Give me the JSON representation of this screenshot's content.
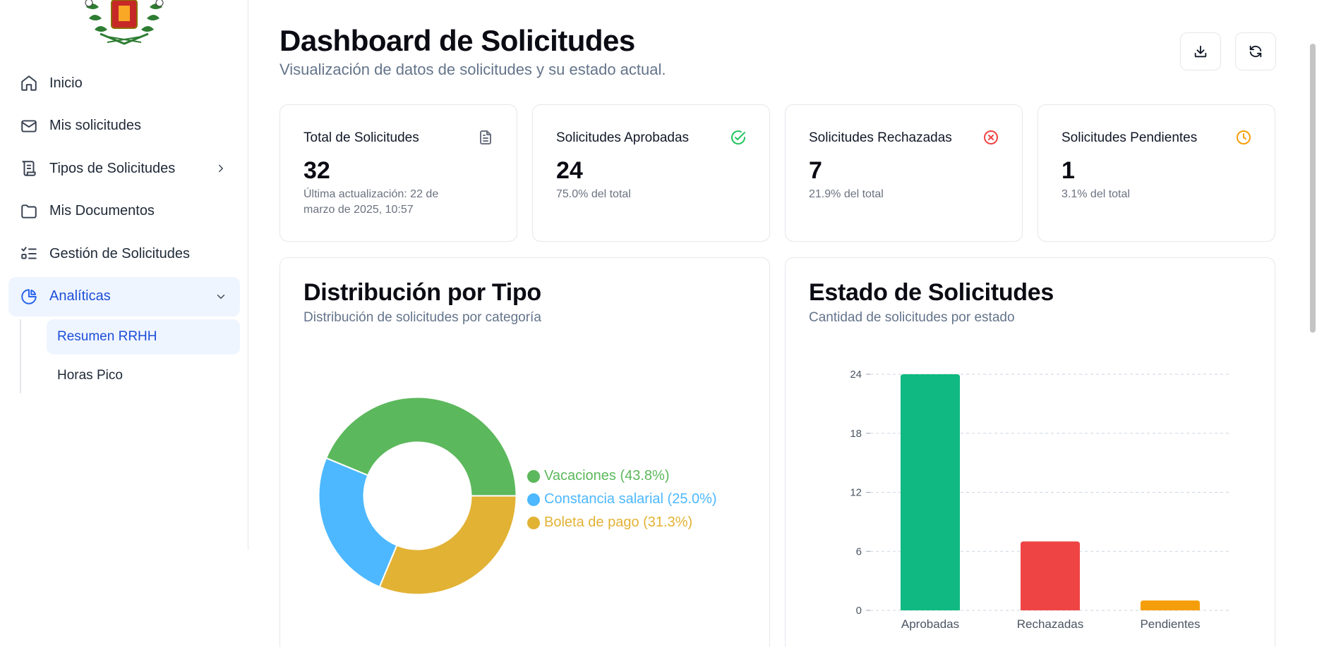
{
  "sidebar": {
    "items": [
      {
        "label": "Inicio",
        "icon": "home-icon"
      },
      {
        "label": "Mis solicitudes",
        "icon": "mail-icon"
      },
      {
        "label": "Tipos de Solicitudes",
        "icon": "scroll-icon"
      },
      {
        "label": "Mis Documentos",
        "icon": "folder-icon"
      },
      {
        "label": "Gestión de Solicitudes",
        "icon": "list-check-icon"
      },
      {
        "label": "Analíticas",
        "icon": "pie-chart-icon"
      }
    ],
    "subitems": [
      {
        "label": "Resumen RRHH"
      },
      {
        "label": "Horas Pico"
      }
    ]
  },
  "header": {
    "title": "Dashboard de Solicitudes",
    "subtitle": "Visualización de datos de solicitudes y su estado actual."
  },
  "stats": [
    {
      "title": "Total de Solicitudes",
      "value": "32",
      "note": "Última actualización: 22 de marzo de 2025, 10:57",
      "icon": "file-text-icon",
      "color": "#6b7280"
    },
    {
      "title": "Solicitudes Aprobadas",
      "value": "24",
      "note": "75.0% del total",
      "icon": "check-circle-icon",
      "color": "#22c55e"
    },
    {
      "title": "Solicitudes Rechazadas",
      "value": "7",
      "note": "21.9% del total",
      "icon": "x-circle-icon",
      "color": "#ef4444"
    },
    {
      "title": "Solicitudes Pendientes",
      "value": "1",
      "note": "3.1% del total",
      "icon": "clock-icon",
      "color": "#f59e0b"
    }
  ],
  "distribution": {
    "title": "Distribución por Tipo",
    "subtitle": "Distribución de solicitudes por categoría"
  },
  "status": {
    "title": "Estado de Solicitudes",
    "subtitle": "Cantidad de solicitudes por estado"
  },
  "chart_data": [
    {
      "type": "pie",
      "title": "Distribución por Tipo",
      "labels": [
        "Vacaciones (43.8%)",
        "Constancia salarial (25.0%)",
        "Boleta de pago (31.3%)"
      ],
      "values": [
        43.8,
        25.0,
        31.3
      ],
      "colors": [
        "#5cb85c",
        "#4db8ff",
        "#e2b234"
      ],
      "legend": "right"
    },
    {
      "type": "bar",
      "title": "Estado de Solicitudes",
      "categories": [
        "Aprobadas",
        "Rechazadas",
        "Pendientes"
      ],
      "values": [
        24,
        7,
        1
      ],
      "colors": [
        "#10b981",
        "#ef4444",
        "#f59e0b"
      ],
      "yticks": [
        0,
        6,
        12,
        18,
        24
      ],
      "ylim": [
        0,
        24
      ],
      "grid": true
    }
  ]
}
